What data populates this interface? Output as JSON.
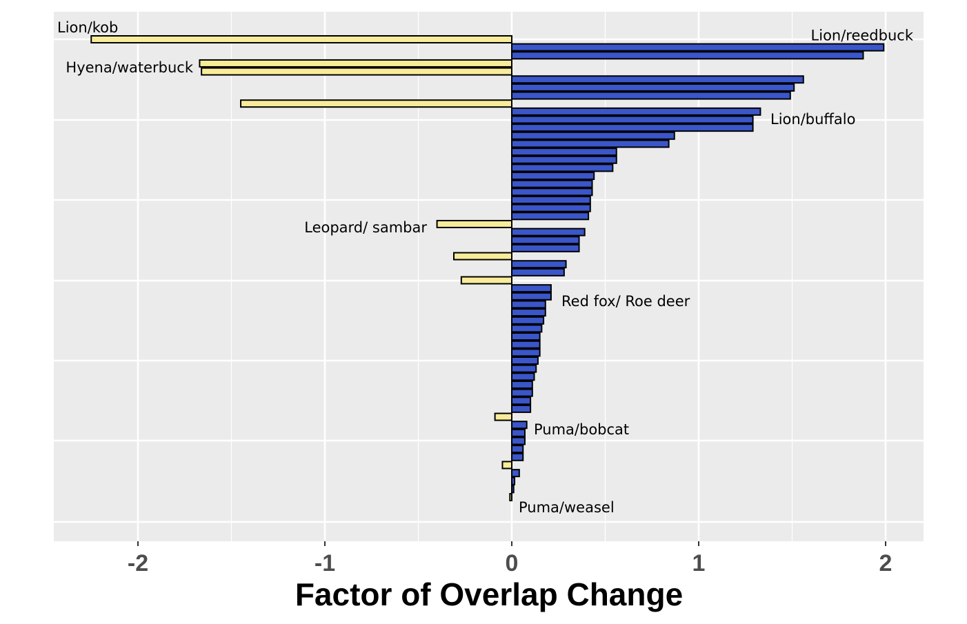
{
  "chart_data": {
    "type": "bar",
    "orientation": "horizontal",
    "xlabel": "Factor of Overlap Change",
    "ylabel": "",
    "title": "",
    "xlim": [
      -2.4,
      2.2
    ],
    "xticks": [
      -2,
      -1,
      0,
      1,
      2
    ],
    "grid": true,
    "legend": "none",
    "colors": {
      "positive": "#3a56c9",
      "negative": "#f8ec9a",
      "panel": "#ebebeb",
      "grid": "#ffffff",
      "outline": "#000000"
    },
    "values": [
      -2.25,
      1.99,
      1.88,
      -1.67,
      -1.66,
      1.56,
      1.51,
      1.49,
      -1.45,
      1.33,
      1.29,
      1.29,
      0.87,
      0.84,
      0.56,
      0.56,
      0.54,
      0.44,
      0.43,
      0.43,
      0.42,
      0.42,
      0.41,
      -0.4,
      0.39,
      0.36,
      0.36,
      -0.31,
      0.29,
      0.28,
      -0.27,
      0.21,
      0.21,
      0.18,
      0.18,
      0.17,
      0.16,
      0.15,
      0.15,
      0.15,
      0.14,
      0.13,
      0.12,
      0.11,
      0.11,
      0.1,
      0.1,
      -0.09,
      0.08,
      0.07,
      0.07,
      0.06,
      0.06,
      -0.05,
      0.04,
      0.015,
      0.01,
      -0.01
    ],
    "annotations": [
      {
        "text": "Lion/kob",
        "bar": 0
      },
      {
        "text": "Lion/reedbuck",
        "bar": 1
      },
      {
        "text": "Hyena/waterbuck",
        "bar": 3
      },
      {
        "text": "Lion/buffalo",
        "bar": 9
      },
      {
        "text": "Leopard/ sambar",
        "bar": 23
      },
      {
        "text": "Red fox/ Roe deer",
        "bar": 32
      },
      {
        "text": "Puma/bobcat",
        "bar": 48
      },
      {
        "text": "Puma/weasel",
        "bar": 57
      }
    ]
  }
}
